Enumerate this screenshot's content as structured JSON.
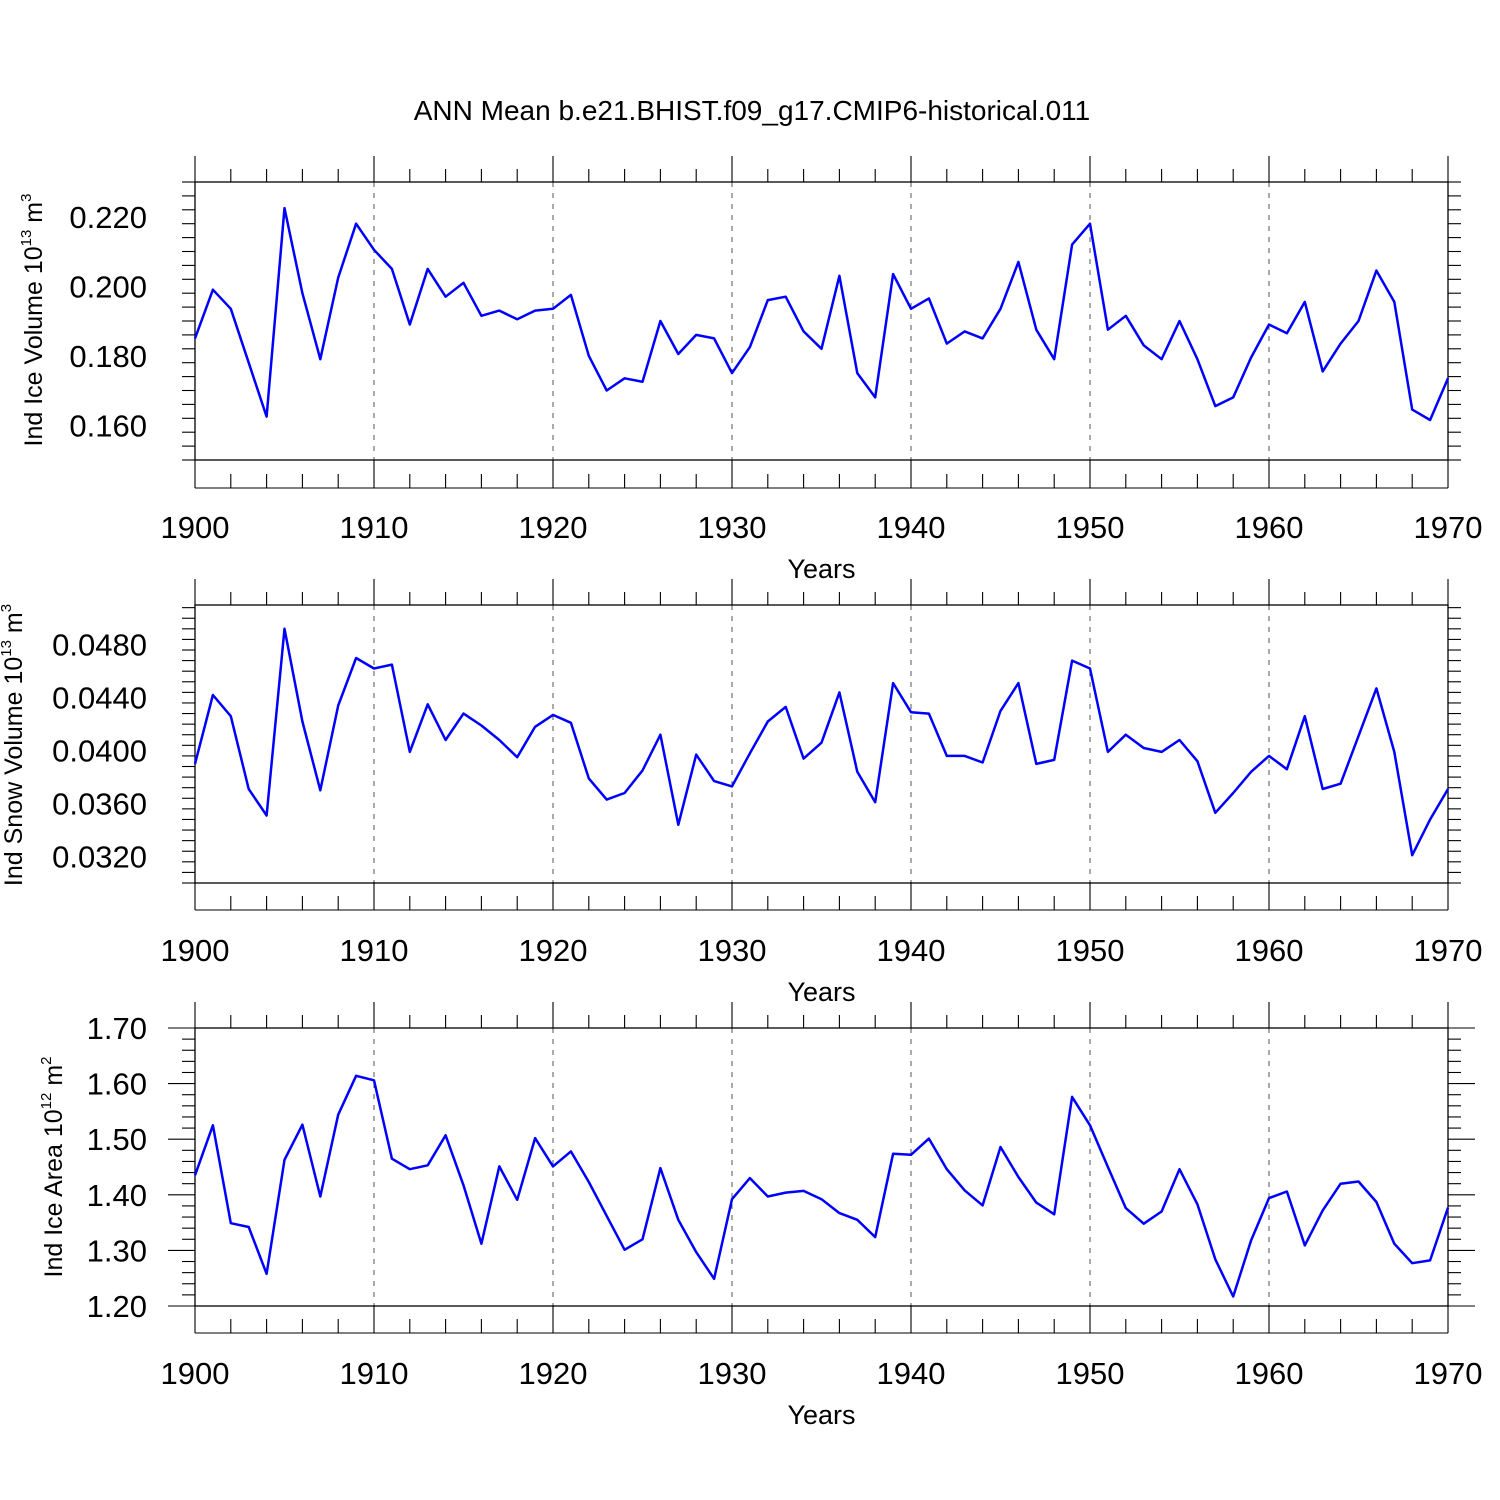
{
  "title": "ANN Mean b.e21.BHIST.f09_g17.CMIP6-historical.011",
  "colors": {
    "line": "#0000ff",
    "axis": "#000000",
    "grid": "#555555"
  },
  "chart_data": [
    {
      "type": "line",
      "ylabel": "Ind Ice Volume 10",
      "ylabel_exp": "13",
      "ylabel_unit": " m",
      "ylabel_unit_exp": "3",
      "xlabel": "Years",
      "xlim": [
        1900,
        1970
      ],
      "ylim": [
        0.15,
        0.23
      ],
      "yticks": [
        0.16,
        0.18,
        0.2,
        0.22
      ],
      "ytick_labels": [
        "0.160",
        "0.180",
        "0.200",
        "0.220"
      ],
      "xticks": [
        1900,
        1910,
        1920,
        1930,
        1940,
        1950,
        1960,
        1970
      ],
      "xtick_labels": [
        "1900",
        "1910",
        "1920",
        "1930",
        "1940",
        "1950",
        "1960",
        "1970"
      ],
      "grid": "vertical dashed at decades",
      "x": [
        1900,
        1901,
        1902,
        1903,
        1904,
        1905,
        1906,
        1907,
        1908,
        1909,
        1910,
        1911,
        1912,
        1913,
        1914,
        1915,
        1916,
        1917,
        1918,
        1919,
        1920,
        1921,
        1922,
        1923,
        1924,
        1925,
        1926,
        1927,
        1928,
        1929,
        1930,
        1931,
        1932,
        1933,
        1934,
        1935,
        1936,
        1937,
        1938,
        1939,
        1940,
        1941,
        1942,
        1943,
        1944,
        1945,
        1946,
        1947,
        1948,
        1949,
        1950,
        1951,
        1952,
        1953,
        1954,
        1955,
        1956,
        1957,
        1958,
        1959,
        1960,
        1961,
        1962,
        1963,
        1964,
        1965,
        1966,
        1967,
        1968,
        1969,
        1970
      ],
      "values": [
        0.185,
        0.199,
        0.1935,
        0.178,
        0.1625,
        0.2225,
        0.198,
        0.179,
        0.2025,
        0.218,
        0.2105,
        0.205,
        0.189,
        0.205,
        0.197,
        0.201,
        0.1915,
        0.193,
        0.1905,
        0.193,
        0.1935,
        0.1975,
        0.18,
        0.17,
        0.1735,
        0.1725,
        0.19,
        0.1805,
        0.186,
        0.185,
        0.175,
        0.1825,
        0.196,
        0.197,
        0.187,
        0.182,
        0.203,
        0.175,
        0.168,
        0.2035,
        0.1935,
        0.1965,
        0.1835,
        0.187,
        0.185,
        0.1935,
        0.207,
        0.1875,
        0.179,
        0.212,
        0.218,
        0.1875,
        0.1915,
        0.183,
        0.179,
        0.19,
        0.179,
        0.1655,
        0.168,
        0.1795,
        0.189,
        0.1865,
        0.1955,
        0.1755,
        0.1835,
        0.19,
        0.2045,
        0.1955,
        0.1645,
        0.1615,
        0.1735
      ]
    },
    {
      "type": "line",
      "ylabel": "Ind Snow Volume 10",
      "ylabel_exp": "13",
      "ylabel_unit": " m",
      "ylabel_unit_exp": "3",
      "xlabel": "Years",
      "xlim": [
        1900,
        1970
      ],
      "ylim": [
        0.03,
        0.051
      ],
      "yticks": [
        0.032,
        0.036,
        0.04,
        0.044,
        0.048
      ],
      "ytick_labels": [
        "0.0320",
        "0.0360",
        "0.0400",
        "0.0440",
        "0.0480"
      ],
      "xticks": [
        1900,
        1910,
        1920,
        1930,
        1940,
        1950,
        1960,
        1970
      ],
      "xtick_labels": [
        "1900",
        "1910",
        "1920",
        "1930",
        "1940",
        "1950",
        "1960",
        "1970"
      ],
      "grid": "vertical dashed at decades",
      "x": [
        1900,
        1901,
        1902,
        1903,
        1904,
        1905,
        1906,
        1907,
        1908,
        1909,
        1910,
        1911,
        1912,
        1913,
        1914,
        1915,
        1916,
        1917,
        1918,
        1919,
        1920,
        1921,
        1922,
        1923,
        1924,
        1925,
        1926,
        1927,
        1928,
        1929,
        1930,
        1931,
        1932,
        1933,
        1934,
        1935,
        1936,
        1937,
        1938,
        1939,
        1940,
        1941,
        1942,
        1943,
        1944,
        1945,
        1946,
        1947,
        1948,
        1949,
        1950,
        1951,
        1952,
        1953,
        1954,
        1955,
        1956,
        1957,
        1958,
        1959,
        1960,
        1961,
        1962,
        1963,
        1964,
        1965,
        1966,
        1967,
        1968,
        1969,
        1970
      ],
      "values": [
        0.039,
        0.0442,
        0.0426,
        0.0371,
        0.0351,
        0.0492,
        0.0422,
        0.037,
        0.0434,
        0.047,
        0.0462,
        0.0465,
        0.0399,
        0.0435,
        0.0408,
        0.0428,
        0.0419,
        0.0408,
        0.0395,
        0.0418,
        0.0427,
        0.0421,
        0.0379,
        0.0363,
        0.0368,
        0.0385,
        0.0412,
        0.0344,
        0.0397,
        0.0377,
        0.0373,
        0.0398,
        0.0422,
        0.0433,
        0.0394,
        0.0406,
        0.0444,
        0.0384,
        0.0361,
        0.0451,
        0.0429,
        0.0428,
        0.0396,
        0.0396,
        0.0391,
        0.043,
        0.0451,
        0.039,
        0.0393,
        0.0468,
        0.0462,
        0.0399,
        0.0412,
        0.0402,
        0.0399,
        0.0408,
        0.0392,
        0.0353,
        0.0368,
        0.0384,
        0.0396,
        0.0386,
        0.0426,
        0.0371,
        0.0375,
        0.0411,
        0.0447,
        0.0399,
        0.0321,
        0.0348,
        0.0371
      ]
    },
    {
      "type": "line",
      "ylabel": "Ind Ice Area 10",
      "ylabel_exp": "12",
      "ylabel_unit": " m",
      "ylabel_unit_exp": "2",
      "xlabel": "Years",
      "xlim": [
        1900,
        1970
      ],
      "ylim": [
        1.2,
        1.7
      ],
      "yticks": [
        1.2,
        1.3,
        1.4,
        1.5,
        1.6,
        1.7
      ],
      "ytick_labels": [
        "1.20",
        "1.30",
        "1.40",
        "1.50",
        "1.60",
        "1.70"
      ],
      "xticks": [
        1900,
        1910,
        1920,
        1930,
        1940,
        1950,
        1960,
        1970
      ],
      "xtick_labels": [
        "1900",
        "1910",
        "1920",
        "1930",
        "1940",
        "1950",
        "1960",
        "1970"
      ],
      "grid": "vertical dashed at decades",
      "x": [
        1900,
        1901,
        1902,
        1903,
        1904,
        1905,
        1906,
        1907,
        1908,
        1909,
        1910,
        1911,
        1912,
        1913,
        1914,
        1915,
        1916,
        1917,
        1918,
        1919,
        1920,
        1921,
        1922,
        1923,
        1924,
        1925,
        1926,
        1927,
        1928,
        1929,
        1930,
        1931,
        1932,
        1933,
        1934,
        1935,
        1936,
        1937,
        1938,
        1939,
        1940,
        1941,
        1942,
        1943,
        1944,
        1945,
        1946,
        1947,
        1948,
        1949,
        1950,
        1951,
        1952,
        1953,
        1954,
        1955,
        1956,
        1957,
        1958,
        1959,
        1960,
        1961,
        1962,
        1963,
        1964,
        1965,
        1966,
        1967,
        1968,
        1969,
        1970
      ],
      "values": [
        1.435,
        1.525,
        1.349,
        1.342,
        1.258,
        1.463,
        1.526,
        1.397,
        1.544,
        1.614,
        1.606,
        1.465,
        1.446,
        1.453,
        1.507,
        1.417,
        1.312,
        1.451,
        1.391,
        1.502,
        1.451,
        1.478,
        1.423,
        1.362,
        1.301,
        1.32,
        1.448,
        1.355,
        1.297,
        1.249,
        1.392,
        1.43,
        1.397,
        1.404,
        1.407,
        1.392,
        1.367,
        1.355,
        1.324,
        1.474,
        1.472,
        1.501,
        1.446,
        1.408,
        1.381,
        1.486,
        1.432,
        1.386,
        1.365,
        1.576,
        1.525,
        1.45,
        1.376,
        1.348,
        1.37,
        1.446,
        1.383,
        1.284,
        1.217,
        1.318,
        1.394,
        1.406,
        1.309,
        1.372,
        1.42,
        1.424,
        1.387,
        1.312,
        1.277,
        1.282,
        1.377
      ]
    }
  ]
}
